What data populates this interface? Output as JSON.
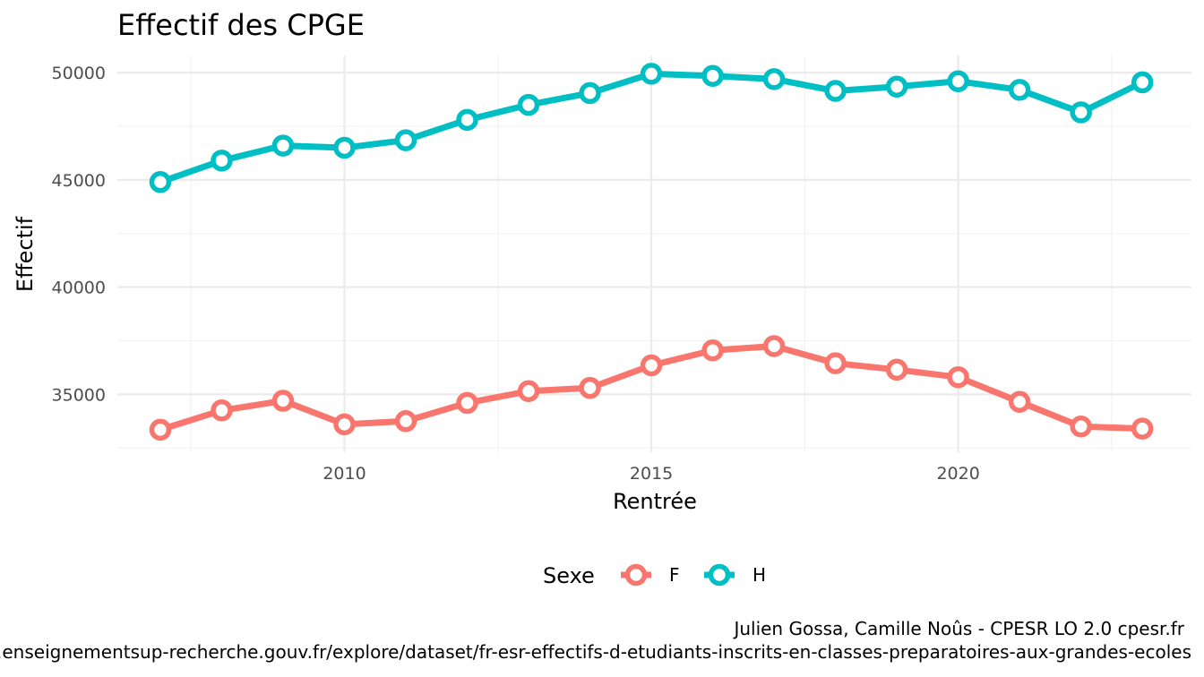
{
  "chart_data": {
    "type": "line",
    "title": "Effectif des CPGE",
    "xlabel": "Rentrée",
    "ylabel": "Effectif",
    "x": [
      2007,
      2008,
      2009,
      2010,
      2011,
      2012,
      2013,
      2014,
      2015,
      2016,
      2017,
      2018,
      2019,
      2020,
      2021,
      2022,
      2023
    ],
    "xlim": [
      2006.3,
      2023.8
    ],
    "ylim": [
      32300,
      50800
    ],
    "x_ticks": [
      2010,
      2015,
      2020
    ],
    "y_ticks": [
      35000,
      40000,
      45000,
      50000
    ],
    "x_tick_labels": [
      "2010",
      "2015",
      "2020"
    ],
    "y_tick_labels": [
      "35000",
      "40000",
      "45000",
      "50000"
    ],
    "grid": true,
    "legend": {
      "title": "Sexe",
      "position": "bottom"
    },
    "series": [
      {
        "name": "F",
        "color": "#F8766D",
        "values": [
          33350,
          34250,
          34700,
          33600,
          33750,
          34600,
          35150,
          35300,
          36350,
          37050,
          37250,
          36450,
          36150,
          35800,
          34650,
          33500,
          33400
        ]
      },
      {
        "name": "H",
        "color": "#00BFC4",
        "values": [
          44900,
          45900,
          46600,
          46500,
          46850,
          47800,
          48500,
          49050,
          49950,
          49850,
          49700,
          49150,
          49350,
          49600,
          49200,
          48150,
          49550
        ]
      }
    ]
  },
  "caption": {
    "line1": "Julien Gossa, Camille Noûs - CPESR LO 2.0 cpesr.fr",
    "line2": "https://data.enseignementsup-recherche.gouv.fr/explore/dataset/fr-esr-effectifs-d-etudiants-inscrits-en-classes-preparatoires-aux-grandes-ecoles"
  }
}
